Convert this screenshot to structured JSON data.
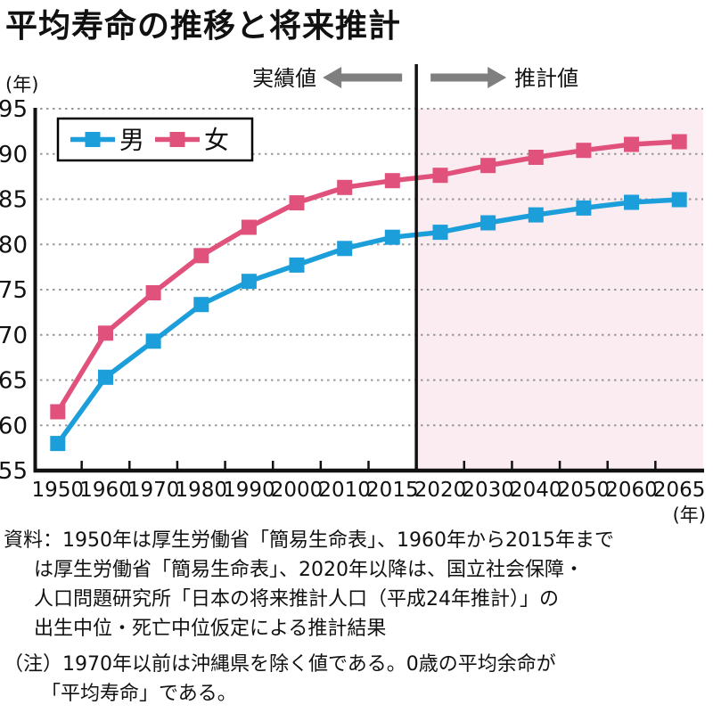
{
  "title": "平均寿命の推移と将来推計",
  "y_unit_label": "(年)",
  "x_unit_label": "(年)",
  "annotations": {
    "actual_label": "実績値",
    "projection_label": "推計値"
  },
  "legend": {
    "male_label": "男",
    "female_label": "女"
  },
  "colors": {
    "male": "#1B9ED9",
    "female": "#E0517C",
    "projection_bg": "#FBECF1",
    "arrow_gray": "#7F7F7F",
    "gridline": "#999999",
    "axis": "#111111"
  },
  "chart_data": {
    "type": "line",
    "title": "平均寿命の推移と将来推計",
    "categories": [
      "1950",
      "1960",
      "1970",
      "1980",
      "1990",
      "2000",
      "2010",
      "2015",
      "2020",
      "2030",
      "2040",
      "2050",
      "2060",
      "2065"
    ],
    "series": [
      {
        "name": "男",
        "color": "#1B9ED9",
        "values": [
          58.0,
          65.32,
          69.31,
          73.35,
          75.92,
          77.72,
          79.55,
          80.79,
          81.34,
          82.39,
          83.27,
          84.02,
          84.66,
          84.95
        ]
      },
      {
        "name": "女",
        "color": "#E0517C",
        "values": [
          61.5,
          70.19,
          74.66,
          78.76,
          81.9,
          84.6,
          86.3,
          87.05,
          87.64,
          88.72,
          89.63,
          90.4,
          91.06,
          91.35
        ]
      }
    ],
    "ylabel": "(年)",
    "xlabel": "(年)",
    "ylim": [
      55,
      95
    ],
    "ytick_step": 5,
    "grid": "horizontal-dotted",
    "legend_position": "top-left-inside",
    "projection_start_category": "2020",
    "projection_bg_color": "#FBECF1",
    "annotation_actual": "実績値",
    "annotation_projection": "推計値"
  },
  "source": {
    "lines": [
      "資料：1950年は厚生労働省「簡易生命表」、1960年から2015年まで",
      "は厚生労働省「簡易生命表」、2020年以降は、国立社会保障・",
      "人口問題研究所「日本の将来推計人口（平成24年推計）」の",
      "出生中位・死亡中位仮定による推計結果"
    ]
  },
  "note": {
    "lines": [
      "（注）1970年以前は沖縄県を除く値である。0歳の平均余命が",
      "「平均寿命」である。"
    ]
  }
}
